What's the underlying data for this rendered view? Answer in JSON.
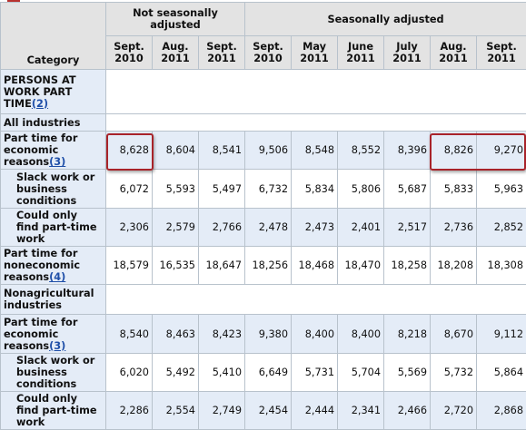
{
  "header": {
    "category": "Category",
    "group_nsa": "Not seasonally adjusted",
    "group_sa": "Seasonally adjusted",
    "columns": [
      {
        "month": "Sept.",
        "year": "2010"
      },
      {
        "month": "Aug.",
        "year": "2011"
      },
      {
        "month": "Sept.",
        "year": "2011"
      },
      {
        "month": "Sept.",
        "year": "2010"
      },
      {
        "month": "May",
        "year": "2011"
      },
      {
        "month": "June",
        "year": "2011"
      },
      {
        "month": "July",
        "year": "2011"
      },
      {
        "month": "Aug.",
        "year": "2011"
      },
      {
        "month": "Sept.",
        "year": "2011"
      }
    ]
  },
  "rows": [
    {
      "label": "PERSONS AT WORK PART TIME",
      "footnote": "(2)",
      "type": "section"
    },
    {
      "label": "All industries",
      "type": "subsection"
    },
    {
      "label": "Part time for economic reasons",
      "footnote": "(3)",
      "type": "data",
      "indent": false,
      "values": [
        "8,628",
        "8,604",
        "8,541",
        "9,506",
        "8,548",
        "8,552",
        "8,396",
        "8,826",
        "9,270"
      ]
    },
    {
      "label": "Slack work or business conditions",
      "type": "data",
      "indent": true,
      "values": [
        "6,072",
        "5,593",
        "5,497",
        "6,732",
        "5,834",
        "5,806",
        "5,687",
        "5,833",
        "5,963"
      ]
    },
    {
      "label": "Could only find part-time work",
      "type": "data",
      "indent": true,
      "values": [
        "2,306",
        "2,579",
        "2,766",
        "2,478",
        "2,473",
        "2,401",
        "2,517",
        "2,736",
        "2,852"
      ]
    },
    {
      "label": "Part time for noneconomic reasons",
      "footnote": "(4)",
      "type": "data",
      "indent": false,
      "values": [
        "18,579",
        "16,535",
        "18,647",
        "18,256",
        "18,468",
        "18,470",
        "18,258",
        "18,208",
        "18,308"
      ]
    },
    {
      "label": "Nonagricultural industries",
      "type": "subsection"
    },
    {
      "label": "Part time for economic reasons",
      "footnote": "(3)",
      "type": "data",
      "indent": false,
      "values": [
        "8,540",
        "8,463",
        "8,423",
        "9,380",
        "8,400",
        "8,400",
        "8,218",
        "8,670",
        "9,112"
      ]
    },
    {
      "label": "Slack work or business conditions",
      "type": "data",
      "indent": true,
      "values": [
        "6,020",
        "5,492",
        "5,410",
        "6,649",
        "5,731",
        "5,704",
        "5,569",
        "5,732",
        "5,864"
      ]
    },
    {
      "label": "Could only find part-time work",
      "type": "data",
      "indent": true,
      "values": [
        "2,286",
        "2,554",
        "2,749",
        "2,454",
        "2,444",
        "2,341",
        "2,466",
        "2,720",
        "2,868"
      ]
    }
  ],
  "highlight_color": "#a8232a"
}
